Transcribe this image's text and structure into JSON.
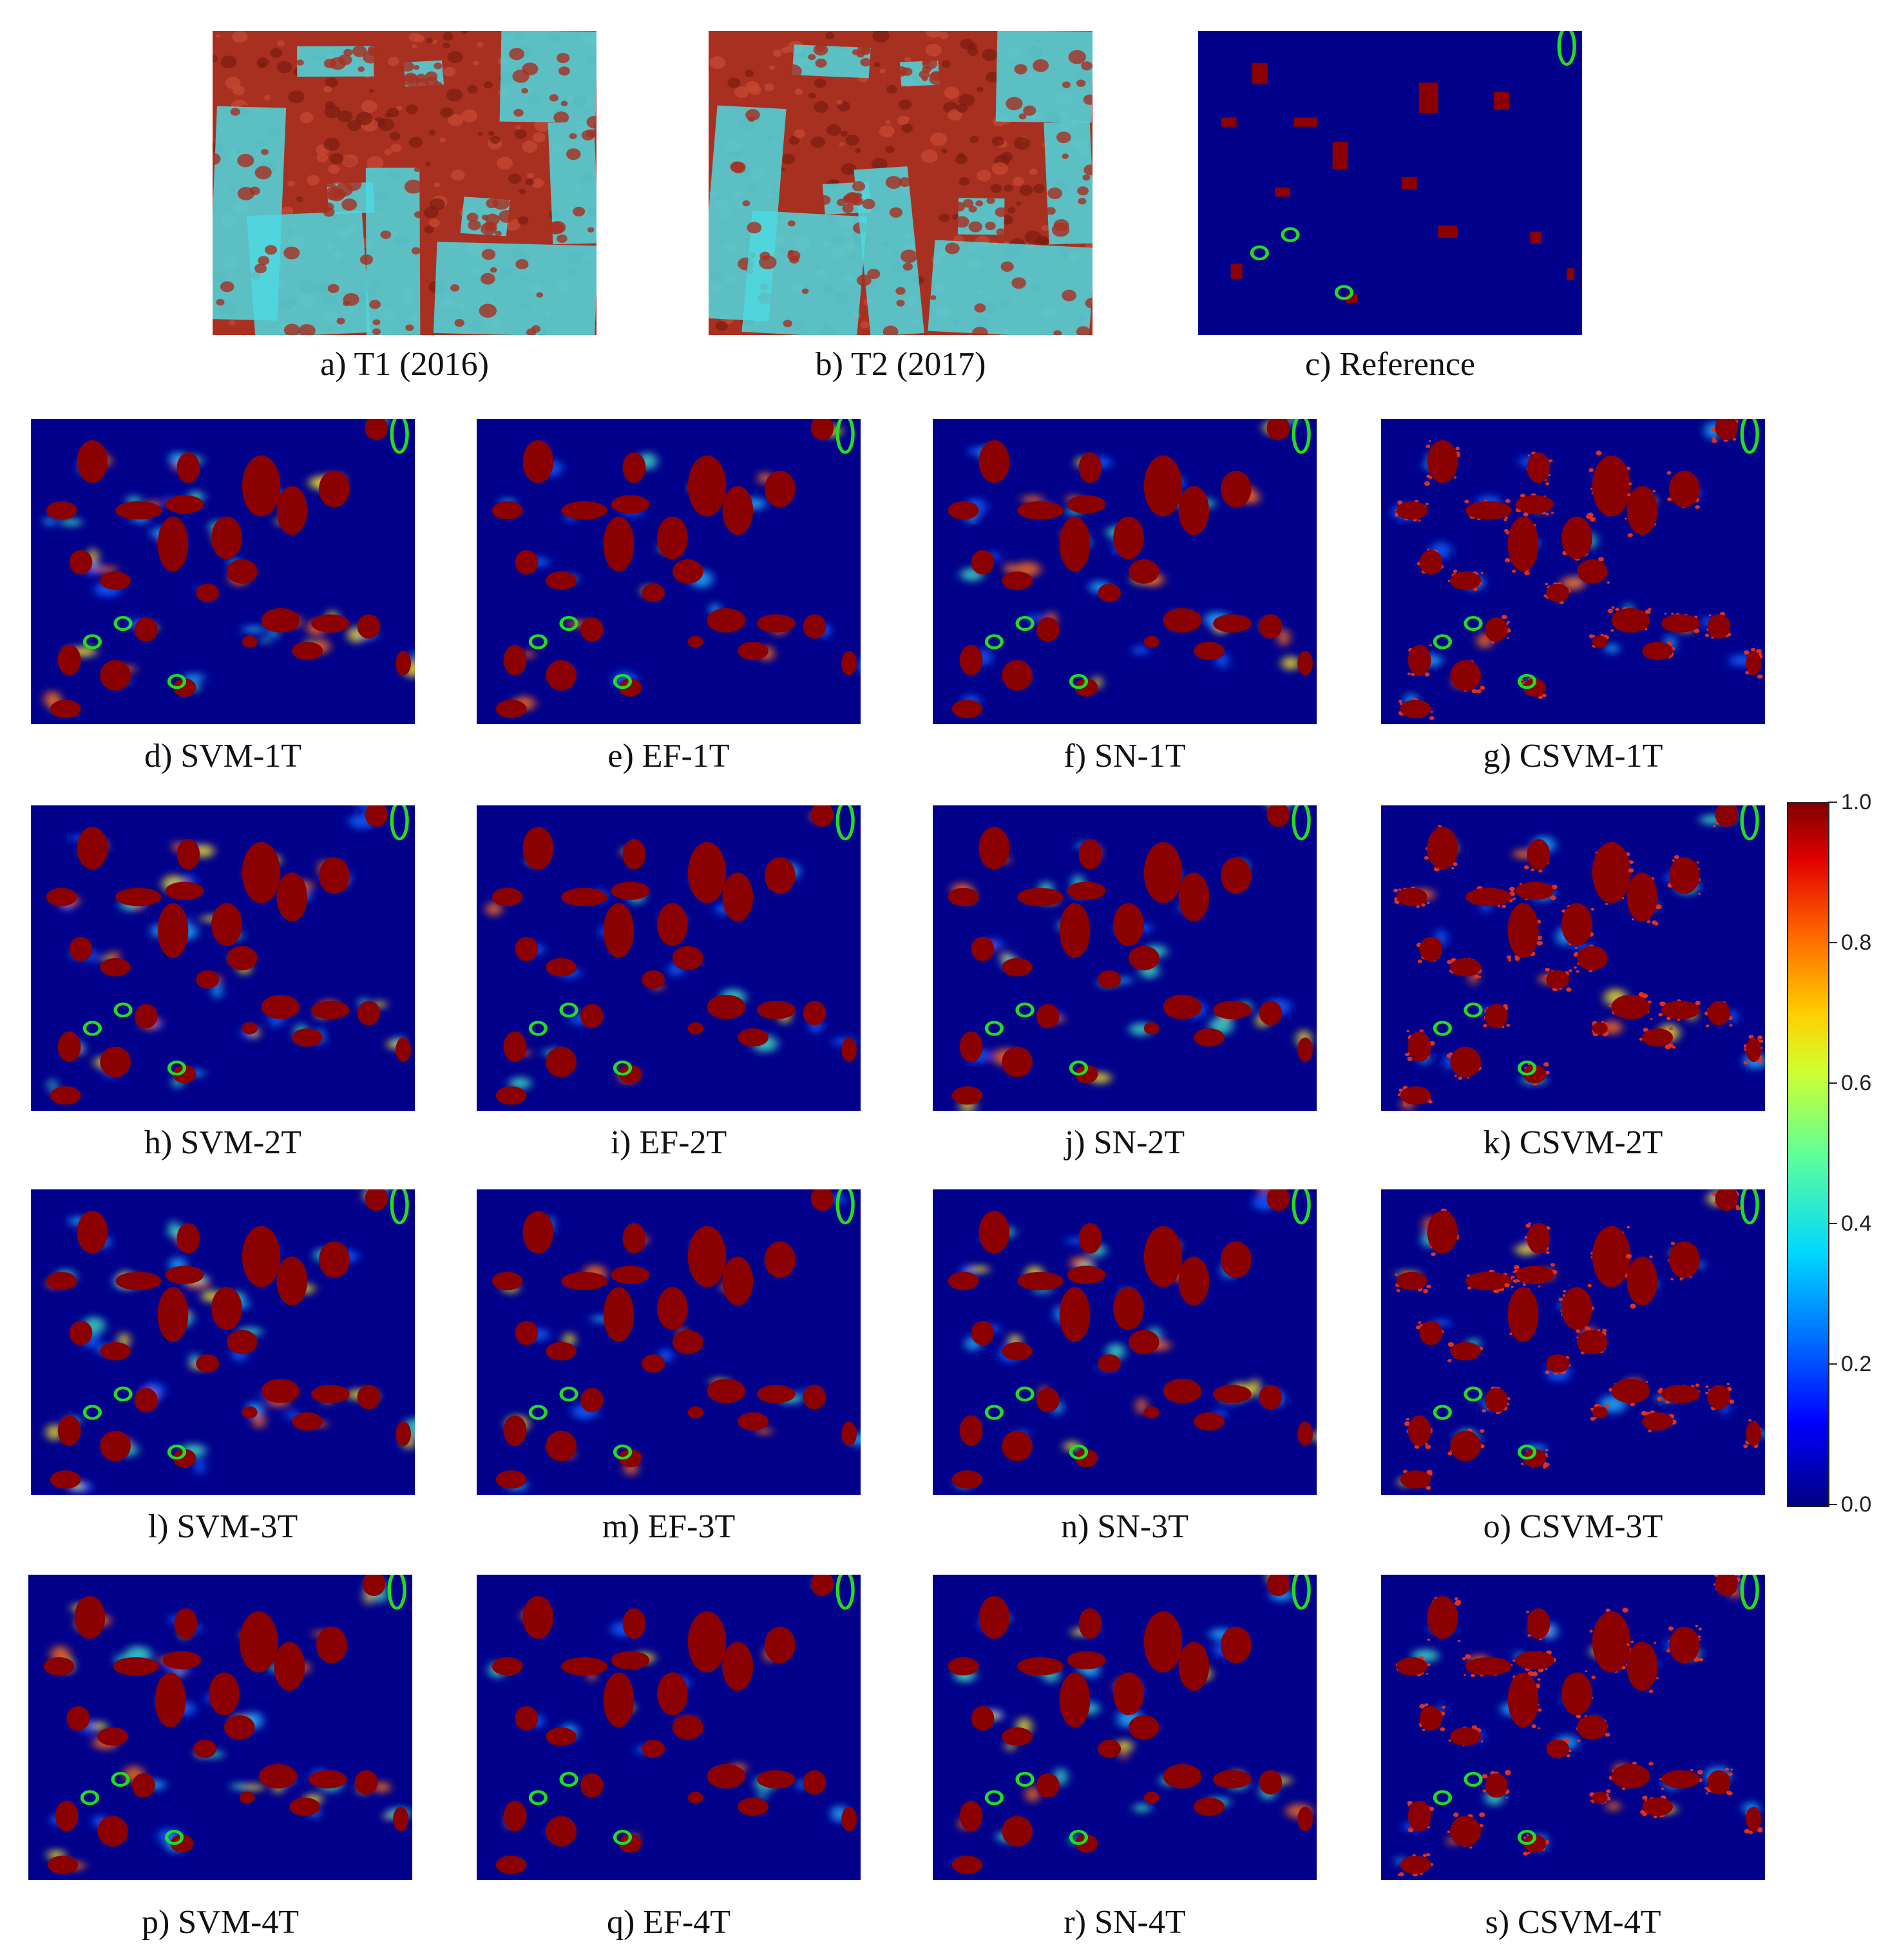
{
  "figure": {
    "panels": [
      {
        "id": "a",
        "caption": "a) T1 (2016)",
        "kind": "satellite"
      },
      {
        "id": "b",
        "caption": "b) T2 (2017)",
        "kind": "satellite"
      },
      {
        "id": "c",
        "caption": "c) Reference",
        "kind": "reference"
      },
      {
        "id": "d",
        "caption": "d) SVM-1T",
        "kind": "svm"
      },
      {
        "id": "e",
        "caption": "e) EF-1T",
        "kind": "ef"
      },
      {
        "id": "f",
        "caption": "f) SN-1T",
        "kind": "sn"
      },
      {
        "id": "g",
        "caption": "g) CSVM-1T",
        "kind": "csvm"
      },
      {
        "id": "h",
        "caption": "h) SVM-2T",
        "kind": "svm"
      },
      {
        "id": "i",
        "caption": "i) EF-2T",
        "kind": "ef"
      },
      {
        "id": "j",
        "caption": "j) SN-2T",
        "kind": "sn"
      },
      {
        "id": "k",
        "caption": "k) CSVM-2T",
        "kind": "csvm"
      },
      {
        "id": "l",
        "caption": "l) SVM-3T",
        "kind": "svm"
      },
      {
        "id": "m",
        "caption": "m) EF-3T",
        "kind": "ef"
      },
      {
        "id": "n",
        "caption": "n) SN-3T",
        "kind": "sn"
      },
      {
        "id": "o",
        "caption": "o) CSVM-3T",
        "kind": "csvm"
      },
      {
        "id": "p",
        "caption": "p) SVM-4T",
        "kind": "svm"
      },
      {
        "id": "q",
        "caption": "q) EF-4T",
        "kind": "ef"
      },
      {
        "id": "r",
        "caption": "r) SN-4T",
        "kind": "sn"
      },
      {
        "id": "s",
        "caption": "s) CSVM-4T",
        "kind": "csvm"
      }
    ],
    "colorbar": {
      "ticks": [
        "0.0",
        "0.2",
        "0.4",
        "0.6",
        "0.8",
        "1.0"
      ],
      "colors": {
        "low": "#000080",
        "mid": "#60ff98",
        "high": "#800000"
      }
    },
    "colors": {
      "background": "#00008b",
      "change": "#8b0000",
      "highlight": "#22dd22",
      "vegetation": "#a83020",
      "cleared": "#4fd8e0"
    }
  }
}
